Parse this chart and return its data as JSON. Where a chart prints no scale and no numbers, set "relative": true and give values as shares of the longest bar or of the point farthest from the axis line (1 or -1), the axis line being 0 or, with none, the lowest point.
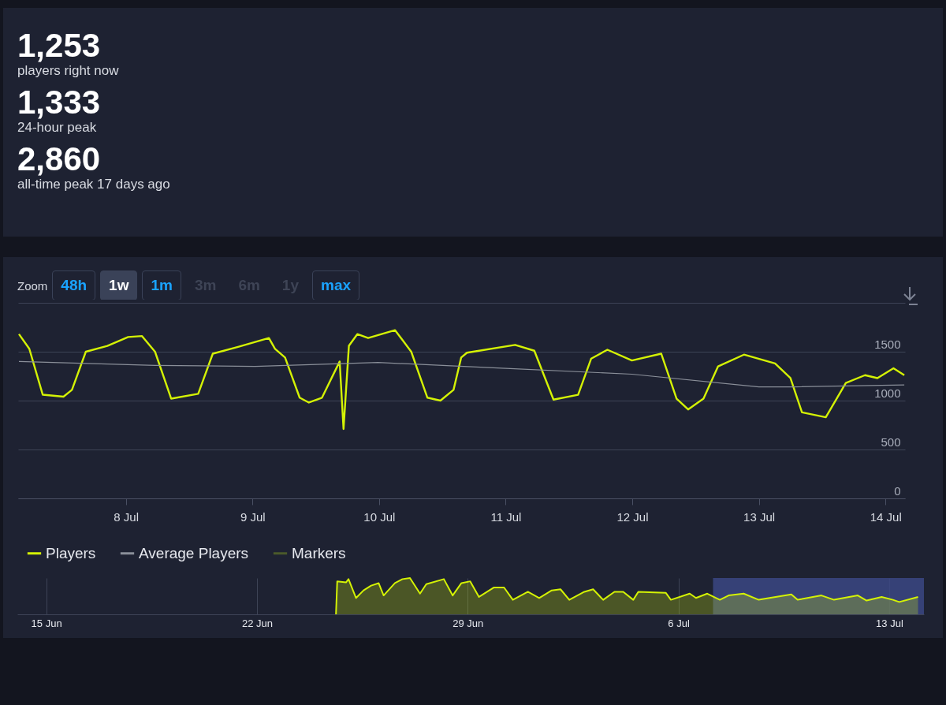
{
  "chart_data": [
    {
      "type": "other",
      "annotations": [
        "1,253",
        "players right now",
        "1,333",
        "24-hour peak",
        "2,860",
        "all-time peak 17 days ago"
      ]
    },
    {
      "type": "line",
      "annotations": [
        "Zoom",
        "48h",
        "1w",
        "1m",
        "3m",
        "6m",
        "1y",
        "max"
      ],
      "xlim": [
        "--07-07T03:35",
        "--07-14T03:42"
      ],
      "xticks": [
        {
          "value": "--07-08",
          "label": "8 Jul"
        },
        {
          "value": "--07-09",
          "label": "9 Jul"
        },
        {
          "value": "--07-10",
          "label": "10 Jul"
        },
        {
          "value": "--07-11",
          "label": "11 Jul"
        },
        {
          "value": "--07-12",
          "label": "12 Jul"
        },
        {
          "value": "--07-13",
          "label": "13 Jul"
        },
        {
          "value": "--07-14",
          "label": "14 Jul"
        }
      ],
      "ylim": [
        0,
        2000
      ],
      "yticks": [
        0,
        500,
        1000,
        1500,
        {
          "value": 2000,
          "label": null
        }
      ],
      "grid": "y",
      "legend": "bottom",
      "line_style": "solid",
      "series": [
        {
          "name": "Players",
          "color": "#d4f205",
          "x": [
            "--07-07T03:44",
            "--07-07T05:42",
            "--07-07T08:15",
            "--07-07T12:11",
            "--07-07T13:47",
            "--07-07T16:25",
            "--07-07T20:30",
            "--07-08T00:26",
            "--07-08T03:04",
            "--07-08T05:32",
            "--07-08T08:36",
            "--07-08T13:43",
            "--07-08T16:29",
            "--07-08T21:17",
            "--07-09T03:07",
            "--07-09T04:17",
            "--07-09T06:11",
            "--07-09T08:57",
            "--07-09T10:42",
            "--07-09T13:11",
            "--07-09T16:32",
            "--07-09T17:16",
            "--07-09T18:17",
            "--07-09T19:53",
            "--07-09T21:56",
            "--07-10T03:02",
            "--07-10T06:06",
            "--07-10T09:10",
            "--07-10T11:38",
            "--07-10T14:07",
            "--07-10T15:34",
            "--07-10T16:40",
            "--07-11T01:47",
            "--07-11T05:26",
            "--07-11T09:04",
            "--07-11T13:44",
            "--07-11T16:13",
            "--07-11T19:17",
            "--07-11T23:56",
            "--07-12T05:29",
            "--07-12T08:24",
            "--07-12T10:35",
            "--07-12T13:30",
            "--07-12T16:16",
            "--07-12T21:10",
            "--07-13T03:04",
            "--07-13T05:59",
            "--07-13T08:10",
            "--07-13T12:41",
            "--07-13T16:29",
            "--07-13T20:07",
            "--07-13T22:28",
            "--07-14T01:31",
            "--07-14T03:34"
          ],
          "values": [
            1680,
            1530,
            1060,
            1040,
            1110,
            1500,
            1560,
            1650,
            1660,
            1500,
            1020,
            1070,
            1480,
            1550,
            1640,
            1530,
            1440,
            1030,
            980,
            1030,
            1400,
            710,
            1560,
            1680,
            1640,
            1720,
            1500,
            1030,
            1000,
            1110,
            1440,
            1490,
            1570,
            1510,
            1010,
            1060,
            1430,
            1520,
            1410,
            1480,
            1020,
            910,
            1020,
            1350,
            1470,
            1380,
            1230,
            880,
            830,
            1180,
            1260,
            1230,
            1330,
            1260
          ]
        },
        {
          "name": "Average Players",
          "color": "#8a8f99",
          "x": [
            "--07-07T03:44",
            "--07-08T05:32",
            "--07-09T00:30",
            "--07-09T23:49",
            "--07-11T00:02",
            "--07-11T23:56",
            "--07-13T00:00",
            "--07-13T06:34",
            "--07-14T03:34"
          ],
          "values": [
            1400,
            1360,
            1350,
            1390,
            1330,
            1270,
            1140,
            1140,
            1160
          ]
        },
        {
          "name": "Markers",
          "color": "#4b5a2a"
        }
      ]
    },
    {
      "type": "area",
      "relative": true,
      "color": "#d4f205",
      "xlim": [
        "--06-14T01:00",
        "--07-14T03:42"
      ],
      "xticks": [
        {
          "value": "--06-15",
          "label": "15 Jun"
        },
        {
          "value": "--06-22",
          "label": "22 Jun"
        },
        {
          "value": "--06-29",
          "label": "29 Jun"
        },
        {
          "value": "--07-06",
          "label": "6 Jul"
        },
        {
          "value": "--07-13",
          "label": "13 Jul"
        }
      ],
      "grid": "x",
      "bands": [
        {
          "axis": "x",
          "from": "--07-07T03:35",
          "to": "--07-14T03:42",
          "color": "#3b4784"
        }
      ],
      "x": [
        "--06-24T15:00",
        "--06-24T16:00",
        "--06-24T23:00",
        "--06-25T01:00",
        "--06-25T07:00",
        "--06-25T13:00",
        "--06-25T19:00",
        "--06-26T01:00",
        "--06-26T05:00",
        "--06-26T14:00",
        "--06-26T20:00",
        "--06-27T02:00",
        "--06-27T10:00",
        "--06-27T15:00",
        "--06-28T05:00",
        "--06-28T12:00",
        "--06-28T19:00",
        "--06-29T02:00",
        "--06-29T09:00",
        "--06-29T21:00",
        "--06-30T05:00",
        "--06-30T12:00",
        "--07-01T00:00",
        "--07-01T09:00",
        "--07-01T19:00",
        "--07-02T02:00",
        "--07-02T09:00",
        "--07-02T21:00",
        "--07-03T04:00",
        "--07-03T12:00",
        "--07-03T21:00",
        "--07-04T04:00",
        "--07-04T12:00",
        "--07-04T16:00",
        "--07-05T14:00",
        "--07-05T18:00",
        "--07-06T09:00",
        "--07-06T14:00",
        "--07-06T23:00",
        "--07-07T09:00",
        "--07-07T16:00",
        "--07-08T04:00",
        "--07-08T16:00",
        "--07-09T18:00",
        "--07-09T23:00",
        "--07-10T18:00",
        "--07-11T04:00",
        "--07-11T23:00",
        "--07-12T06:00",
        "--07-12T18:00",
        "--07-13T03:00",
        "--07-13T08:00",
        "--07-13T23:00"
      ],
      "values": [
        0,
        0.91,
        0.88,
        0.97,
        0.45,
        0.66,
        0.79,
        0.86,
        0.52,
        0.86,
        0.97,
        1,
        0.57,
        0.83,
        0.97,
        0.52,
        0.86,
        0.91,
        0.48,
        0.74,
        0.74,
        0.4,
        0.62,
        0.45,
        0.66,
        0.69,
        0.4,
        0.62,
        0.69,
        0.4,
        0.62,
        0.62,
        0.4,
        0.62,
        0.59,
        0.4,
        0.57,
        0.45,
        0.57,
        0.4,
        0.52,
        0.57,
        0.4,
        0.55,
        0.4,
        0.52,
        0.4,
        0.52,
        0.38,
        0.48,
        0.4,
        0.34,
        0.48
      ]
    }
  ]
}
